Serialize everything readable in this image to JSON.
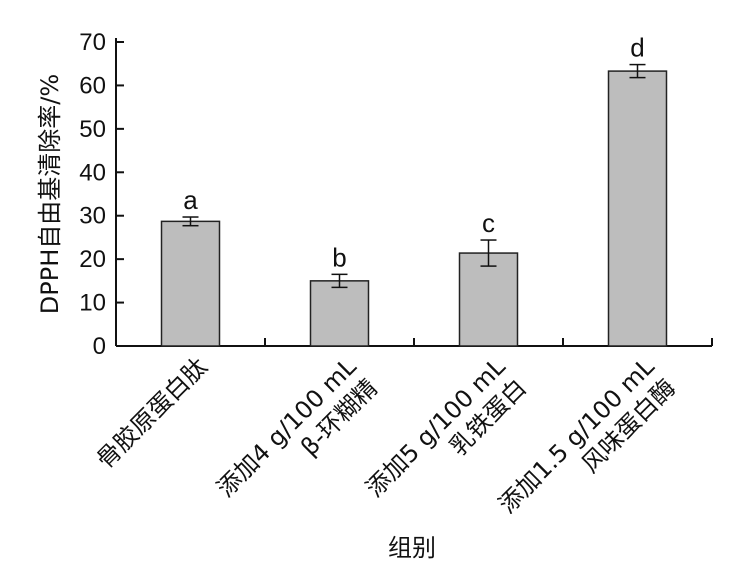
{
  "chart_data": {
    "type": "bar",
    "xlabel": "组别",
    "ylabel": "DPPH自由基清除率/%",
    "ylim": [
      0,
      70
    ],
    "yticks": [
      0,
      10,
      20,
      30,
      40,
      50,
      60,
      70
    ],
    "categories": [
      [
        "骨胶原蛋白肽"
      ],
      [
        "添加4 g/100 mL",
        "β-环糊精"
      ],
      [
        "添加5 g/100 mL",
        "乳铁蛋白"
      ],
      [
        "添加1.5 g/100 mL",
        "风味蛋白酶"
      ]
    ],
    "values": [
      28.7,
      15.0,
      21.4,
      63.3
    ],
    "errors": [
      1.0,
      1.5,
      3.0,
      1.5
    ],
    "significance": [
      "a",
      "b",
      "c",
      "d"
    ],
    "grid": false,
    "bar_color": "#bdbdbd",
    "bar_edge_color": "#222222"
  }
}
